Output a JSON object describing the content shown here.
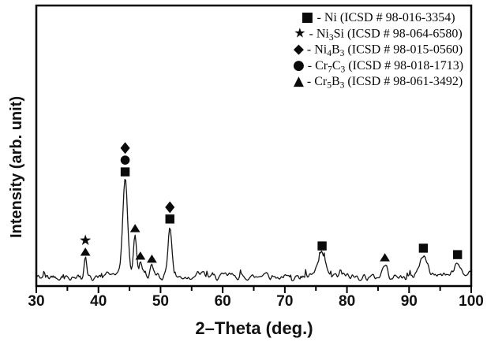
{
  "chart_data": {
    "type": "line",
    "title": "",
    "xlabel": "2–Theta (deg.)",
    "ylabel": "Intensity (arb. unit)",
    "x_range": [
      30,
      100
    ],
    "x_major_ticks": [
      30,
      40,
      50,
      60,
      70,
      80,
      90,
      100
    ],
    "x_minor_ticks": [
      35,
      45,
      55,
      65,
      75,
      85,
      95
    ],
    "y_axis": {
      "tick_labels_shown": false,
      "units": "arbitrary"
    },
    "grid": "off",
    "legend_position": "top-right-inside",
    "line_color": "#161616",
    "marker_color": "#0a0a0a",
    "baseline_intensity": 3.2,
    "noise_amplitude": 1.5,
    "noise_seed": 42,
    "sample_step_deg": 0.15,
    "peaks": [
      {
        "two_theta": 37.9,
        "height": 6.6,
        "sigma": 0.2
      },
      {
        "two_theta": 41.3,
        "height": 0.9,
        "sigma": 0.3
      },
      {
        "two_theta": 42.3,
        "height": 1.2,
        "sigma": 0.5
      },
      {
        "two_theta": 44.3,
        "height": 35.0,
        "sigma": 0.4
      },
      {
        "two_theta": 45.9,
        "height": 15.2,
        "sigma": 0.26
      },
      {
        "two_theta": 46.75,
        "height": 5.0,
        "sigma": 0.2
      },
      {
        "two_theta": 47.3,
        "height": 2.0,
        "sigma": 0.25
      },
      {
        "two_theta": 48.6,
        "height": 3.8,
        "sigma": 0.25
      },
      {
        "two_theta": 49.3,
        "height": 1.5,
        "sigma": 0.3
      },
      {
        "two_theta": 51.5,
        "height": 18.0,
        "sigma": 0.32
      },
      {
        "two_theta": 56.5,
        "height": 1.3,
        "sigma": 0.7
      },
      {
        "two_theta": 61.0,
        "height": 0.8,
        "sigma": 0.8
      },
      {
        "two_theta": 66.8,
        "height": 1.6,
        "sigma": 0.5
      },
      {
        "two_theta": 75.0,
        "height": 1.5,
        "sigma": 0.4
      },
      {
        "two_theta": 76.0,
        "height": 8.0,
        "sigma": 0.55
      },
      {
        "two_theta": 79.0,
        "height": 0.8,
        "sigma": 0.8
      },
      {
        "two_theta": 86.1,
        "height": 4.3,
        "sigma": 0.4
      },
      {
        "two_theta": 92.3,
        "height": 7.2,
        "sigma": 0.7
      },
      {
        "two_theta": 95.3,
        "height": 1.2,
        "sigma": 0.8
      },
      {
        "two_theta": 97.8,
        "height": 5.0,
        "sigma": 0.55
      },
      {
        "two_theta": 99.7,
        "height": 1.3,
        "sigma": 0.6
      }
    ],
    "markers": [
      {
        "symbol": "star",
        "phase": "Ni3Si",
        "two_theta": 37.9,
        "intensity": 16.3
      },
      {
        "symbol": "triangle",
        "phase": "Cr5B3",
        "two_theta": 37.9,
        "intensity": 12.1
      },
      {
        "symbol": "diamond",
        "phase": "Ni4B3",
        "two_theta": 44.3,
        "intensity": 49.2
      },
      {
        "symbol": "circle",
        "phase": "Cr7C3",
        "two_theta": 44.3,
        "intensity": 44.9
      },
      {
        "symbol": "square",
        "phase": "Ni",
        "two_theta": 44.3,
        "intensity": 40.7
      },
      {
        "symbol": "triangle",
        "phase": "Cr5B3",
        "two_theta": 45.9,
        "intensity": 20.5
      },
      {
        "symbol": "triangle",
        "phase": "Cr5B3",
        "two_theta": 46.75,
        "intensity": 10.7
      },
      {
        "symbol": "triangle",
        "phase": "Cr5B3",
        "two_theta": 48.6,
        "intensity": 9.6
      },
      {
        "symbol": "diamond",
        "phase": "Ni4B3",
        "two_theta": 51.5,
        "intensity": 28.1
      },
      {
        "symbol": "square",
        "phase": "Ni",
        "two_theta": 51.5,
        "intensity": 23.9
      },
      {
        "symbol": "square",
        "phase": "Ni",
        "two_theta": 76.0,
        "intensity": 14.3
      },
      {
        "symbol": "triangle",
        "phase": "Cr5B3",
        "two_theta": 86.1,
        "intensity": 10.1
      },
      {
        "symbol": "square",
        "phase": "Ni",
        "two_theta": 92.3,
        "intensity": 13.5
      },
      {
        "symbol": "square",
        "phase": "Ni",
        "two_theta": 97.8,
        "intensity": 11.2
      }
    ],
    "legend": {
      "items": [
        {
          "symbol": "square",
          "glyph": "■",
          "separator": " - ",
          "formula": [
            {
              "t": "Ni"
            }
          ],
          "icsd": " (ICSD # 98-016-3354)"
        },
        {
          "symbol": "star",
          "glyph": "★",
          "separator": " - ",
          "formula": [
            {
              "t": "Ni"
            },
            {
              "t": "3",
              "sub": true
            },
            {
              "t": "Si"
            }
          ],
          "icsd": " (ICSD # 98-064-6580)"
        },
        {
          "symbol": "diamond",
          "glyph": "◆",
          "separator": " - ",
          "formula": [
            {
              "t": "Ni"
            },
            {
              "t": "4",
              "sub": true
            },
            {
              "t": "B"
            },
            {
              "t": "3",
              "sub": true
            }
          ],
          "icsd": " (ICSD # 98-015-0560)"
        },
        {
          "symbol": "circle",
          "glyph": "●",
          "separator": " - ",
          "formula": [
            {
              "t": "Cr"
            },
            {
              "t": "7",
              "sub": true
            },
            {
              "t": "C"
            },
            {
              "t": "3",
              "sub": true
            }
          ],
          "icsd": " (ICSD # 98-018-1713)"
        },
        {
          "symbol": "triangle",
          "glyph": "▲",
          "separator": " - ",
          "formula": [
            {
              "t": "Cr"
            },
            {
              "t": "5",
              "sub": true
            },
            {
              "t": "B"
            },
            {
              "t": "3",
              "sub": true
            }
          ],
          "icsd": " (ICSD # 98-061-3492)"
        }
      ]
    }
  }
}
